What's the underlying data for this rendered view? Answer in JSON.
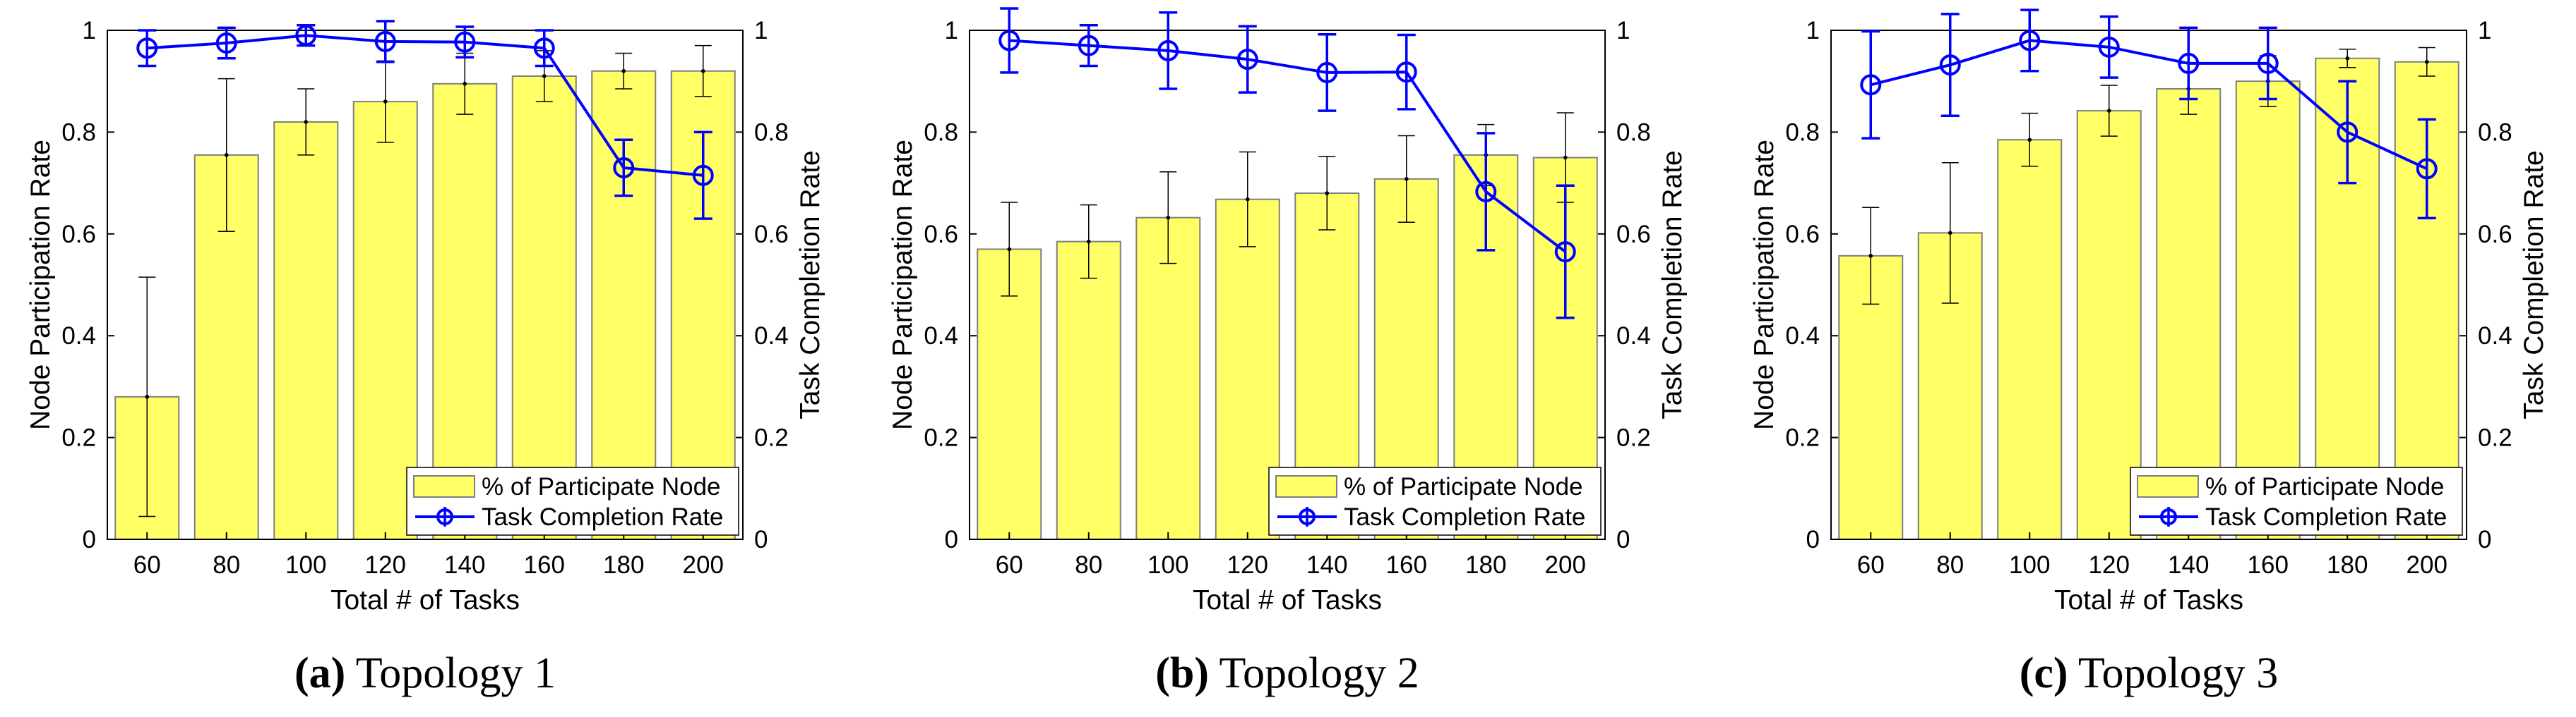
{
  "colors": {
    "bar_fill": "#ffff66",
    "bar_edge": "#7f7f7f",
    "line": "#0000ff",
    "errorbar": "#000000"
  },
  "chart_data": [
    {
      "type": "bar",
      "caption_letter": "(a)",
      "caption_text": "Topology 1",
      "categories": [
        "60",
        "80",
        "100",
        "120",
        "140",
        "160",
        "180",
        "200"
      ],
      "xlabel": "Total # of Tasks",
      "ylabel": "Node Participation Rate",
      "y2label": "Task Completion Rate",
      "ylim": [
        0,
        1
      ],
      "y2lim": [
        0,
        1
      ],
      "yticks": [
        "0",
        "0.2",
        "0.4",
        "0.6",
        "0.8",
        "1"
      ],
      "y2ticks": [
        "0",
        "0.2",
        "0.4",
        "0.6",
        "0.8",
        "1"
      ],
      "legend_position": "bottom-right",
      "series": [
        {
          "name": "% of Participate Node",
          "kind": "bar",
          "values": [
            0.28,
            0.755,
            0.82,
            0.86,
            0.895,
            0.91,
            0.92,
            0.92
          ],
          "errors": [
            0.235,
            0.15,
            0.065,
            0.08,
            0.06,
            0.05,
            0.035,
            0.05
          ]
        },
        {
          "name": "Task Completion Rate",
          "kind": "line",
          "values": [
            0.965,
            0.975,
            0.99,
            0.978,
            0.977,
            0.965,
            0.73,
            0.715
          ],
          "errors": [
            0.035,
            0.03,
            0.02,
            0.04,
            0.03,
            0.035,
            0.055,
            0.085
          ]
        }
      ]
    },
    {
      "type": "bar",
      "caption_letter": "(b)",
      "caption_text": "Topology 2",
      "categories": [
        "60",
        "80",
        "100",
        "120",
        "140",
        "160",
        "180",
        "200"
      ],
      "xlabel": "Total # of Tasks",
      "ylabel": "Node Participation Rate",
      "y2label": "Task Completion Rate",
      "ylim": [
        0,
        1
      ],
      "y2lim": [
        0,
        1
      ],
      "yticks": [
        "0",
        "0.2",
        "0.4",
        "0.6",
        "0.8",
        "1"
      ],
      "y2ticks": [
        "0",
        "0.2",
        "0.4",
        "0.6",
        "0.8",
        "1"
      ],
      "legend_position": "bottom-right",
      "series": [
        {
          "name": "% of Participate Node",
          "kind": "bar",
          "values": [
            0.57,
            0.585,
            0.632,
            0.668,
            0.68,
            0.708,
            0.755,
            0.75
          ],
          "errors": [
            0.092,
            0.072,
            0.09,
            0.093,
            0.072,
            0.085,
            0.06,
            0.088
          ]
        },
        {
          "name": "Task Completion Rate",
          "kind": "line",
          "values": [
            0.98,
            0.97,
            0.96,
            0.943,
            0.917,
            0.918,
            0.683,
            0.565
          ],
          "errors": [
            0.063,
            0.04,
            0.075,
            0.065,
            0.075,
            0.073,
            0.115,
            0.13
          ]
        }
      ]
    },
    {
      "type": "bar",
      "caption_letter": "(c)",
      "caption_text": "Topology 3",
      "categories": [
        "60",
        "80",
        "100",
        "120",
        "140",
        "160",
        "180",
        "200"
      ],
      "xlabel": "Total # of Tasks",
      "ylabel": "Node Participation Rate",
      "y2label": "Task Completion Rate",
      "ylim": [
        0,
        1
      ],
      "y2lim": [
        0,
        1
      ],
      "yticks": [
        "0",
        "0.2",
        "0.4",
        "0.6",
        "0.8",
        "1"
      ],
      "y2ticks": [
        "0",
        "0.2",
        "0.4",
        "0.6",
        "0.8",
        "1"
      ],
      "legend_position": "bottom-right",
      "series": [
        {
          "name": "% of Participate Node",
          "kind": "bar",
          "values": [
            0.557,
            0.602,
            0.785,
            0.842,
            0.885,
            0.9,
            0.945,
            0.938
          ],
          "errors": [
            0.095,
            0.138,
            0.052,
            0.05,
            0.05,
            0.05,
            0.018,
            0.028
          ]
        },
        {
          "name": "Task Completion Rate",
          "kind": "line",
          "values": [
            0.893,
            0.932,
            0.98,
            0.967,
            0.935,
            0.935,
            0.8,
            0.728
          ],
          "errors": [
            0.105,
            0.1,
            0.06,
            0.06,
            0.07,
            0.07,
            0.1,
            0.097
          ]
        }
      ]
    }
  ]
}
